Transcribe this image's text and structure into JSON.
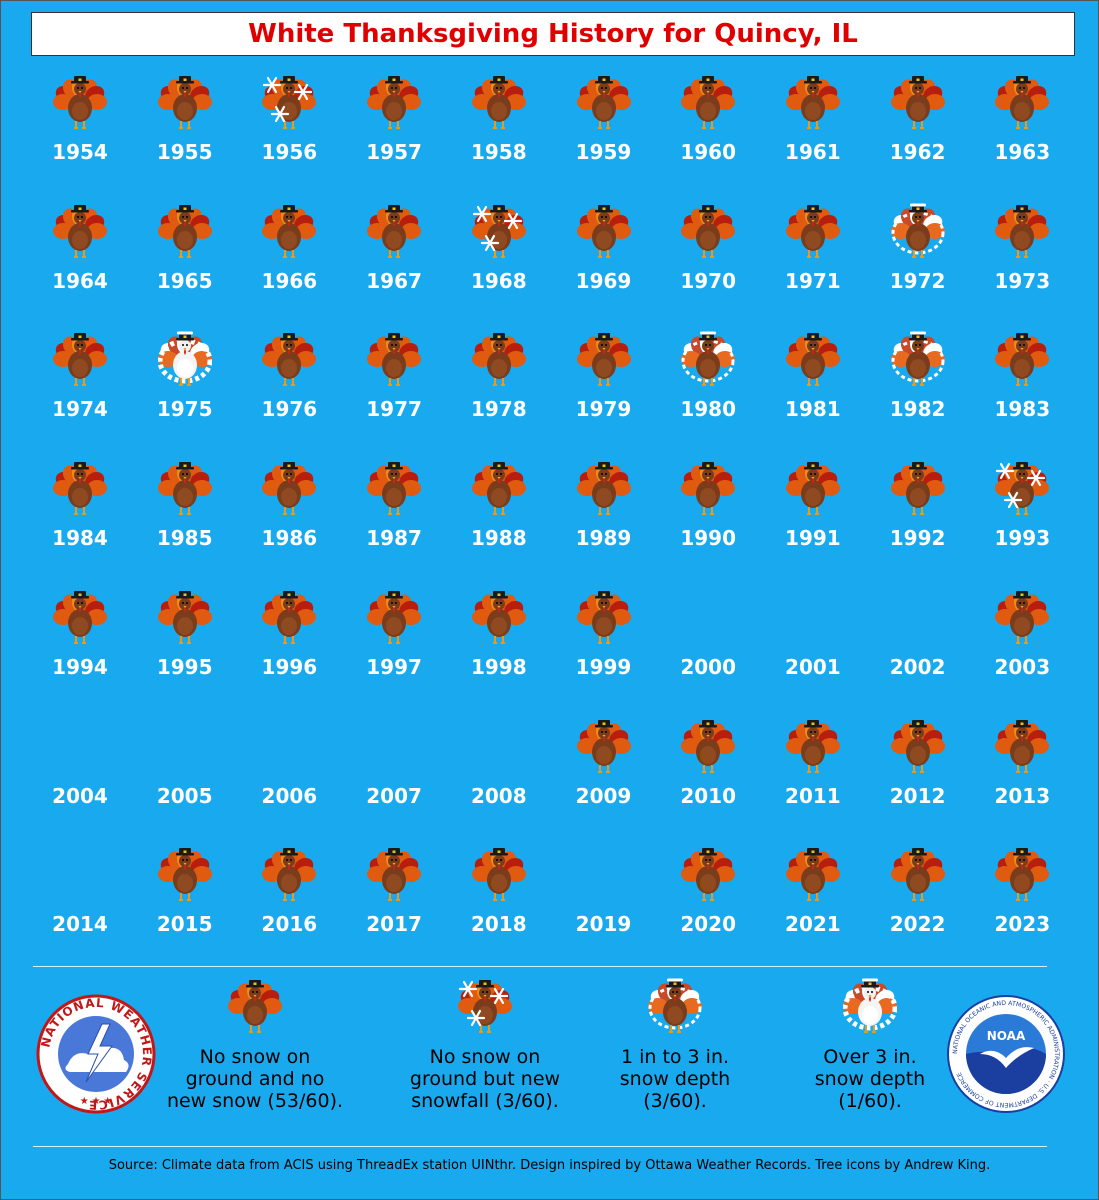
{
  "title": "White Thanksgiving History for Quincy, IL",
  "chart_data": {
    "type": "table",
    "title": "White Thanksgiving History for Quincy, IL",
    "category_codes": {
      "none": "No snow on ground and no new snow",
      "new_snow": "No snow on ground but new snowfall",
      "depth_1_3": "1 in to 3 in. snow depth",
      "depth_over_3": "Over 3 in. snow depth"
    },
    "years": [
      {
        "year": "1954",
        "category": "none"
      },
      {
        "year": "1955",
        "category": "none"
      },
      {
        "year": "1956",
        "category": "new_snow"
      },
      {
        "year": "1957",
        "category": "none"
      },
      {
        "year": "1958",
        "category": "none"
      },
      {
        "year": "1959",
        "category": "none"
      },
      {
        "year": "1960",
        "category": "none"
      },
      {
        "year": "1961",
        "category": "none"
      },
      {
        "year": "1962",
        "category": "none"
      },
      {
        "year": "1963",
        "category": "none"
      },
      {
        "year": "1964",
        "category": "none"
      },
      {
        "year": "1965",
        "category": "none"
      },
      {
        "year": "1966",
        "category": "none"
      },
      {
        "year": "1967",
        "category": "none"
      },
      {
        "year": "1968",
        "category": "new_snow"
      },
      {
        "year": "1969",
        "category": "none"
      },
      {
        "year": "1970",
        "category": "none"
      },
      {
        "year": "1971",
        "category": "none"
      },
      {
        "year": "1972",
        "category": "depth_1_3"
      },
      {
        "year": "1973",
        "category": "none"
      },
      {
        "year": "1974",
        "category": "none"
      },
      {
        "year": "1975",
        "category": "depth_over_3"
      },
      {
        "year": "1976",
        "category": "none"
      },
      {
        "year": "1977",
        "category": "none"
      },
      {
        "year": "1978",
        "category": "none"
      },
      {
        "year": "1979",
        "category": "none"
      },
      {
        "year": "1980",
        "category": "depth_1_3"
      },
      {
        "year": "1981",
        "category": "none"
      },
      {
        "year": "1982",
        "category": "depth_1_3"
      },
      {
        "year": "1983",
        "category": "none"
      },
      {
        "year": "1984",
        "category": "none"
      },
      {
        "year": "1985",
        "category": "none"
      },
      {
        "year": "1986",
        "category": "none"
      },
      {
        "year": "1987",
        "category": "none"
      },
      {
        "year": "1988",
        "category": "none"
      },
      {
        "year": "1989",
        "category": "none"
      },
      {
        "year": "1990",
        "category": "none"
      },
      {
        "year": "1991",
        "category": "none"
      },
      {
        "year": "1992",
        "category": "none"
      },
      {
        "year": "1993",
        "category": "new_snow"
      },
      {
        "year": "1994",
        "category": "none"
      },
      {
        "year": "1995",
        "category": "none"
      },
      {
        "year": "1996",
        "category": "none"
      },
      {
        "year": "1997",
        "category": "none"
      },
      {
        "year": "1998",
        "category": "none"
      },
      {
        "year": "1999",
        "category": "none"
      },
      {
        "year": "2000",
        "category": "no_data"
      },
      {
        "year": "2001",
        "category": "no_data"
      },
      {
        "year": "2002",
        "category": "no_data"
      },
      {
        "year": "2003",
        "category": "none"
      },
      {
        "year": "2004",
        "category": "no_data"
      },
      {
        "year": "2005",
        "category": "no_data"
      },
      {
        "year": "2006",
        "category": "no_data"
      },
      {
        "year": "2007",
        "category": "no_data"
      },
      {
        "year": "2008",
        "category": "no_data"
      },
      {
        "year": "2009",
        "category": "none"
      },
      {
        "year": "2010",
        "category": "none"
      },
      {
        "year": "2011",
        "category": "none"
      },
      {
        "year": "2012",
        "category": "none"
      },
      {
        "year": "2013",
        "category": "none"
      },
      {
        "year": "2014",
        "category": "no_data"
      },
      {
        "year": "2015",
        "category": "none"
      },
      {
        "year": "2016",
        "category": "none"
      },
      {
        "year": "2017",
        "category": "none"
      },
      {
        "year": "2018",
        "category": "none"
      },
      {
        "year": "2019",
        "category": "no_data"
      },
      {
        "year": "2020",
        "category": "none"
      },
      {
        "year": "2021",
        "category": "none"
      },
      {
        "year": "2022",
        "category": "none"
      },
      {
        "year": "2023",
        "category": "none"
      }
    ]
  },
  "legend": [
    {
      "category": "none",
      "label_lines": [
        "No snow on",
        "ground and no",
        "new snow (53/60)."
      ]
    },
    {
      "category": "new_snow",
      "label_lines": [
        "No snow on",
        "ground but new",
        "snowfall (3/60)."
      ]
    },
    {
      "category": "depth_1_3",
      "label_lines": [
        "1 in to 3 in.",
        "snow depth",
        "(3/60)."
      ]
    },
    {
      "category": "depth_over_3",
      "label_lines": [
        "Over 3 in.",
        "snow depth",
        "(1/60)."
      ]
    }
  ],
  "logos": {
    "nws_text": "NATIONAL WEATHER SERVICE",
    "noaa_text": "NOAA",
    "noaa_ring_text": "NATIONAL OCEANIC AND ATMOSPHERIC ADMINISTRATION · U.S. DEPARTMENT OF COMMERCE"
  },
  "footer": "Source: Climate data from ACIS using ThreadEx station UINthr. Design inspired by Ottawa Weather Records. Tree icons by Andrew King."
}
